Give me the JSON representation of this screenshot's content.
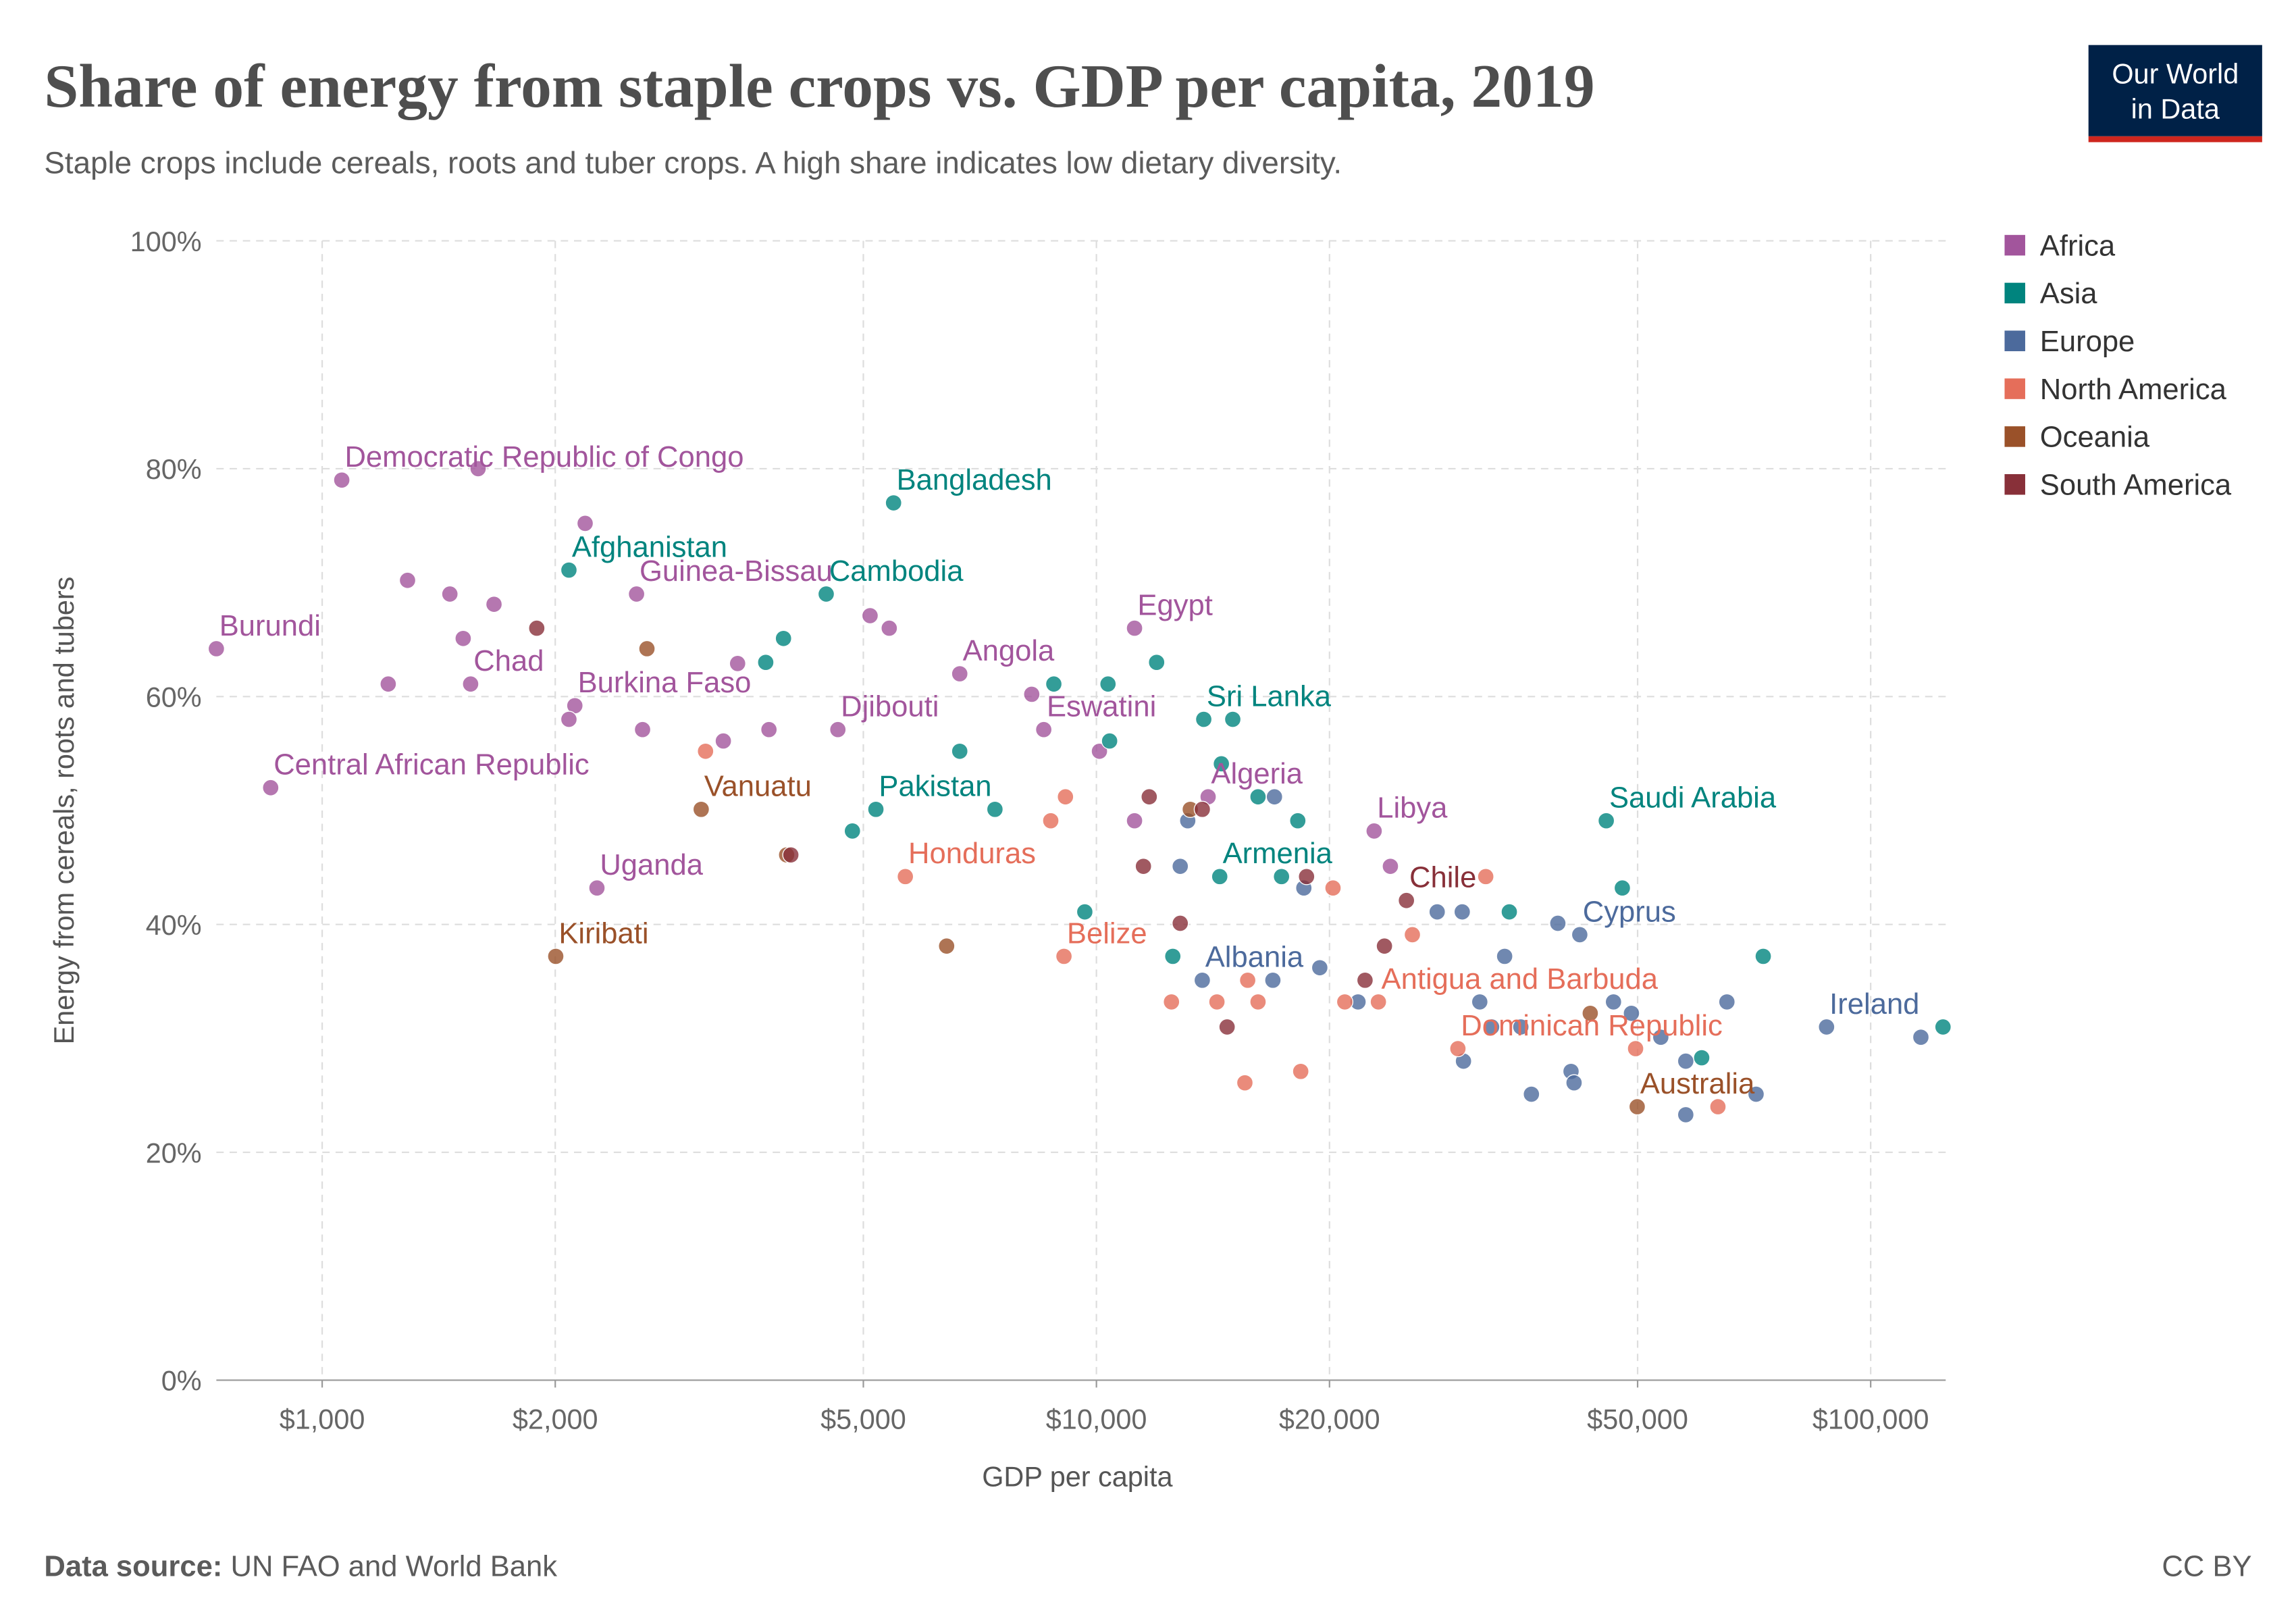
{
  "chart_data": {
    "type": "scatter",
    "title": "Share of energy from staple crops vs. GDP per capita, 2019",
    "subtitle": "Staple crops include cereals, roots and tuber crops. A high share indicates low dietary diversity.",
    "x_label": "GDP per capita",
    "y_label": "Energy from cereals, roots and tubers",
    "source_label": "Data source:",
    "source": "UN FAO and World Bank",
    "license": "CC BY",
    "logo": [
      "Our World",
      "in Data"
    ],
    "log_x": true,
    "grid": true,
    "xlim": [
      730,
      125000
    ],
    "ylim": [
      0,
      100
    ],
    "xticks": [
      {
        "value": 1000,
        "label": "$1,000"
      },
      {
        "value": 2000,
        "label": "$2,000"
      },
      {
        "value": 5000,
        "label": "$5,000"
      },
      {
        "value": 10000,
        "label": "$10,000"
      },
      {
        "value": 20000,
        "label": "$20,000"
      },
      {
        "value": 50000,
        "label": "$50,000"
      },
      {
        "value": 100000,
        "label": "$100,000"
      }
    ],
    "yticks": [
      {
        "value": 0,
        "label": "0%"
      },
      {
        "value": 20,
        "label": "20%"
      },
      {
        "value": 40,
        "label": "40%"
      },
      {
        "value": 60,
        "label": "60%"
      },
      {
        "value": 80,
        "label": "80%"
      },
      {
        "value": 100,
        "label": "100%"
      }
    ],
    "legend": "top-right",
    "series": [
      {
        "name": "Africa",
        "color": "#a2559c",
        "points": [
          {
            "x": 1060,
            "y": 79,
            "label": "Democratic Republic of Congo"
          },
          {
            "x": 730,
            "y": 64.2,
            "label": "Burundi"
          },
          {
            "x": 858,
            "y": 52,
            "label": "Central African Republic"
          },
          {
            "x": 1555,
            "y": 61.1,
            "label": "Chad"
          },
          {
            "x": 2547,
            "y": 69,
            "label": "Guinea-Bissau"
          },
          {
            "x": 2120,
            "y": 59.2,
            "label": "Burkina Faso"
          },
          {
            "x": 2264,
            "y": 43.2,
            "label": "Uganda"
          },
          {
            "x": 6660,
            "y": 62,
            "label": "Angola"
          },
          {
            "x": 11200,
            "y": 66,
            "label": "Egypt"
          },
          {
            "x": 8550,
            "y": 57.1,
            "label": "Eswatini"
          },
          {
            "x": 4635,
            "y": 57.1,
            "label": "Djibouti"
          },
          {
            "x": 13940,
            "y": 51.2,
            "label": "Algeria"
          },
          {
            "x": 22840,
            "y": 48.2,
            "label": "Libya"
          },
          {
            "x": 1289,
            "y": 70.2
          },
          {
            "x": 1462,
            "y": 69
          },
          {
            "x": 1667,
            "y": 68.1
          },
          {
            "x": 1521,
            "y": 65.1
          },
          {
            "x": 1217,
            "y": 61.1
          },
          {
            "x": 2083,
            "y": 58
          },
          {
            "x": 2593,
            "y": 57.1
          },
          {
            "x": 3297,
            "y": 56.1
          },
          {
            "x": 3776,
            "y": 57.1
          },
          {
            "x": 5101,
            "y": 67.1
          },
          {
            "x": 5400,
            "y": 66
          },
          {
            "x": 8250,
            "y": 60.2
          },
          {
            "x": 10090,
            "y": 55.2
          },
          {
            "x": 11200,
            "y": 49.1
          },
          {
            "x": 23970,
            "y": 45.1
          },
          {
            "x": 2186,
            "y": 75.2
          },
          {
            "x": 3440,
            "y": 62.9
          },
          {
            "x": 1590,
            "y": 80
          }
        ]
      },
      {
        "name": "Asia",
        "color": "#00847e",
        "points": [
          {
            "x": 5470,
            "y": 77,
            "label": "Bangladesh"
          },
          {
            "x": 2083,
            "y": 71.1,
            "label": "Afghanistan"
          },
          {
            "x": 4477,
            "y": 69,
            "label": "Cambodia"
          },
          {
            "x": 13760,
            "y": 58,
            "label": "Sri Lanka"
          },
          {
            "x": 5190,
            "y": 50.1,
            "label": "Pakistan"
          },
          {
            "x": 14430,
            "y": 44.2,
            "label": "Armenia"
          },
          {
            "x": 45550,
            "y": 49.1,
            "label": "Saudi Arabia"
          },
          {
            "x": 3943,
            "y": 65.1
          },
          {
            "x": 3740,
            "y": 63
          },
          {
            "x": 8810,
            "y": 61.1
          },
          {
            "x": 10350,
            "y": 61.1
          },
          {
            "x": 11960,
            "y": 63
          },
          {
            "x": 10400,
            "y": 56.1
          },
          {
            "x": 15000,
            "y": 58
          },
          {
            "x": 6660,
            "y": 55.2
          },
          {
            "x": 7395,
            "y": 50.1
          },
          {
            "x": 4840,
            "y": 48.2
          },
          {
            "x": 14500,
            "y": 54.1
          },
          {
            "x": 18200,
            "y": 49.1
          },
          {
            "x": 17340,
            "y": 44.2
          },
          {
            "x": 9660,
            "y": 41.1
          },
          {
            "x": 12550,
            "y": 37.2
          },
          {
            "x": 34140,
            "y": 41.1
          },
          {
            "x": 47780,
            "y": 43.2
          },
          {
            "x": 72650,
            "y": 37.2
          },
          {
            "x": 124000,
            "y": 31
          },
          {
            "x": 60500,
            "y": 28.3
          },
          {
            "x": 16170,
            "y": 51.2
          }
        ]
      },
      {
        "name": "Europe",
        "color": "#4c6a9c",
        "points": [
          {
            "x": 13700,
            "y": 35.1,
            "label": "Albania"
          },
          {
            "x": 42100,
            "y": 39.1,
            "label": "Cyprus"
          },
          {
            "x": 87700,
            "y": 31,
            "label": "Ireland"
          },
          {
            "x": 12830,
            "y": 45.1
          },
          {
            "x": 13120,
            "y": 49.1
          },
          {
            "x": 16980,
            "y": 51.2
          },
          {
            "x": 18530,
            "y": 43.2
          },
          {
            "x": 19430,
            "y": 36.2
          },
          {
            "x": 27550,
            "y": 41.1
          },
          {
            "x": 29680,
            "y": 41.1
          },
          {
            "x": 33670,
            "y": 37.2
          },
          {
            "x": 39440,
            "y": 40.1
          },
          {
            "x": 31270,
            "y": 33.2
          },
          {
            "x": 32390,
            "y": 31
          },
          {
            "x": 35330,
            "y": 31
          },
          {
            "x": 36460,
            "y": 25.1
          },
          {
            "x": 41020,
            "y": 27.1
          },
          {
            "x": 41390,
            "y": 26.1
          },
          {
            "x": 46540,
            "y": 33.2
          },
          {
            "x": 49090,
            "y": 32.2
          },
          {
            "x": 53570,
            "y": 30.1
          },
          {
            "x": 57700,
            "y": 28
          },
          {
            "x": 57700,
            "y": 23.3
          },
          {
            "x": 65210,
            "y": 33.2
          },
          {
            "x": 71120,
            "y": 25.1
          },
          {
            "x": 116100,
            "y": 30.1
          },
          {
            "x": 16900,
            "y": 35.1
          },
          {
            "x": 21770,
            "y": 33.2
          },
          {
            "x": 29790,
            "y": 28
          }
        ]
      },
      {
        "name": "North America",
        "color": "#e56e5a",
        "points": [
          {
            "x": 5665,
            "y": 44.2,
            "label": "Honduras"
          },
          {
            "x": 9080,
            "y": 37.2,
            "label": "Belize"
          },
          {
            "x": 23130,
            "y": 33.2,
            "label": "Antigua and Barbuda"
          },
          {
            "x": 29300,
            "y": 29.1,
            "label": "Dominican Republic"
          },
          {
            "x": 3127,
            "y": 55.2
          },
          {
            "x": 8730,
            "y": 49.1
          },
          {
            "x": 9120,
            "y": 51.2
          },
          {
            "x": 20210,
            "y": 43.2
          },
          {
            "x": 25590,
            "y": 39.1
          },
          {
            "x": 20930,
            "y": 33.2
          },
          {
            "x": 15680,
            "y": 35.1
          },
          {
            "x": 14310,
            "y": 33.2
          },
          {
            "x": 16170,
            "y": 33.2
          },
          {
            "x": 12500,
            "y": 33.2
          },
          {
            "x": 15550,
            "y": 26.1
          },
          {
            "x": 18360,
            "y": 27.1
          },
          {
            "x": 49700,
            "y": 29.1
          },
          {
            "x": 63490,
            "y": 24
          },
          {
            "x": 31830,
            "y": 44.2
          }
        ]
      },
      {
        "name": "Oceania",
        "color": "#9a5129",
        "points": [
          {
            "x": 3087,
            "y": 50.1,
            "label": "Vanuatu"
          },
          {
            "x": 2003,
            "y": 37.2,
            "label": "Kiribati"
          },
          {
            "x": 49940,
            "y": 24,
            "label": "Australia"
          },
          {
            "x": 2627,
            "y": 64.2
          },
          {
            "x": 3980,
            "y": 46.1
          },
          {
            "x": 6405,
            "y": 38.1
          },
          {
            "x": 43430,
            "y": 32.2
          },
          {
            "x": 13220,
            "y": 50.1
          }
        ]
      },
      {
        "name": "South America",
        "color": "#883039",
        "points": [
          {
            "x": 25140,
            "y": 42.1,
            "label": "Chile"
          },
          {
            "x": 11500,
            "y": 45.1
          },
          {
            "x": 12830,
            "y": 40.1
          },
          {
            "x": 11700,
            "y": 51.2
          },
          {
            "x": 13700,
            "y": 50.1
          },
          {
            "x": 18680,
            "y": 44.2
          },
          {
            "x": 23550,
            "y": 38.1
          },
          {
            "x": 22230,
            "y": 35.1
          },
          {
            "x": 14750,
            "y": 31
          },
          {
            "x": 4030,
            "y": 46.1
          },
          {
            "x": 1893,
            "y": 66
          }
        ]
      }
    ]
  }
}
